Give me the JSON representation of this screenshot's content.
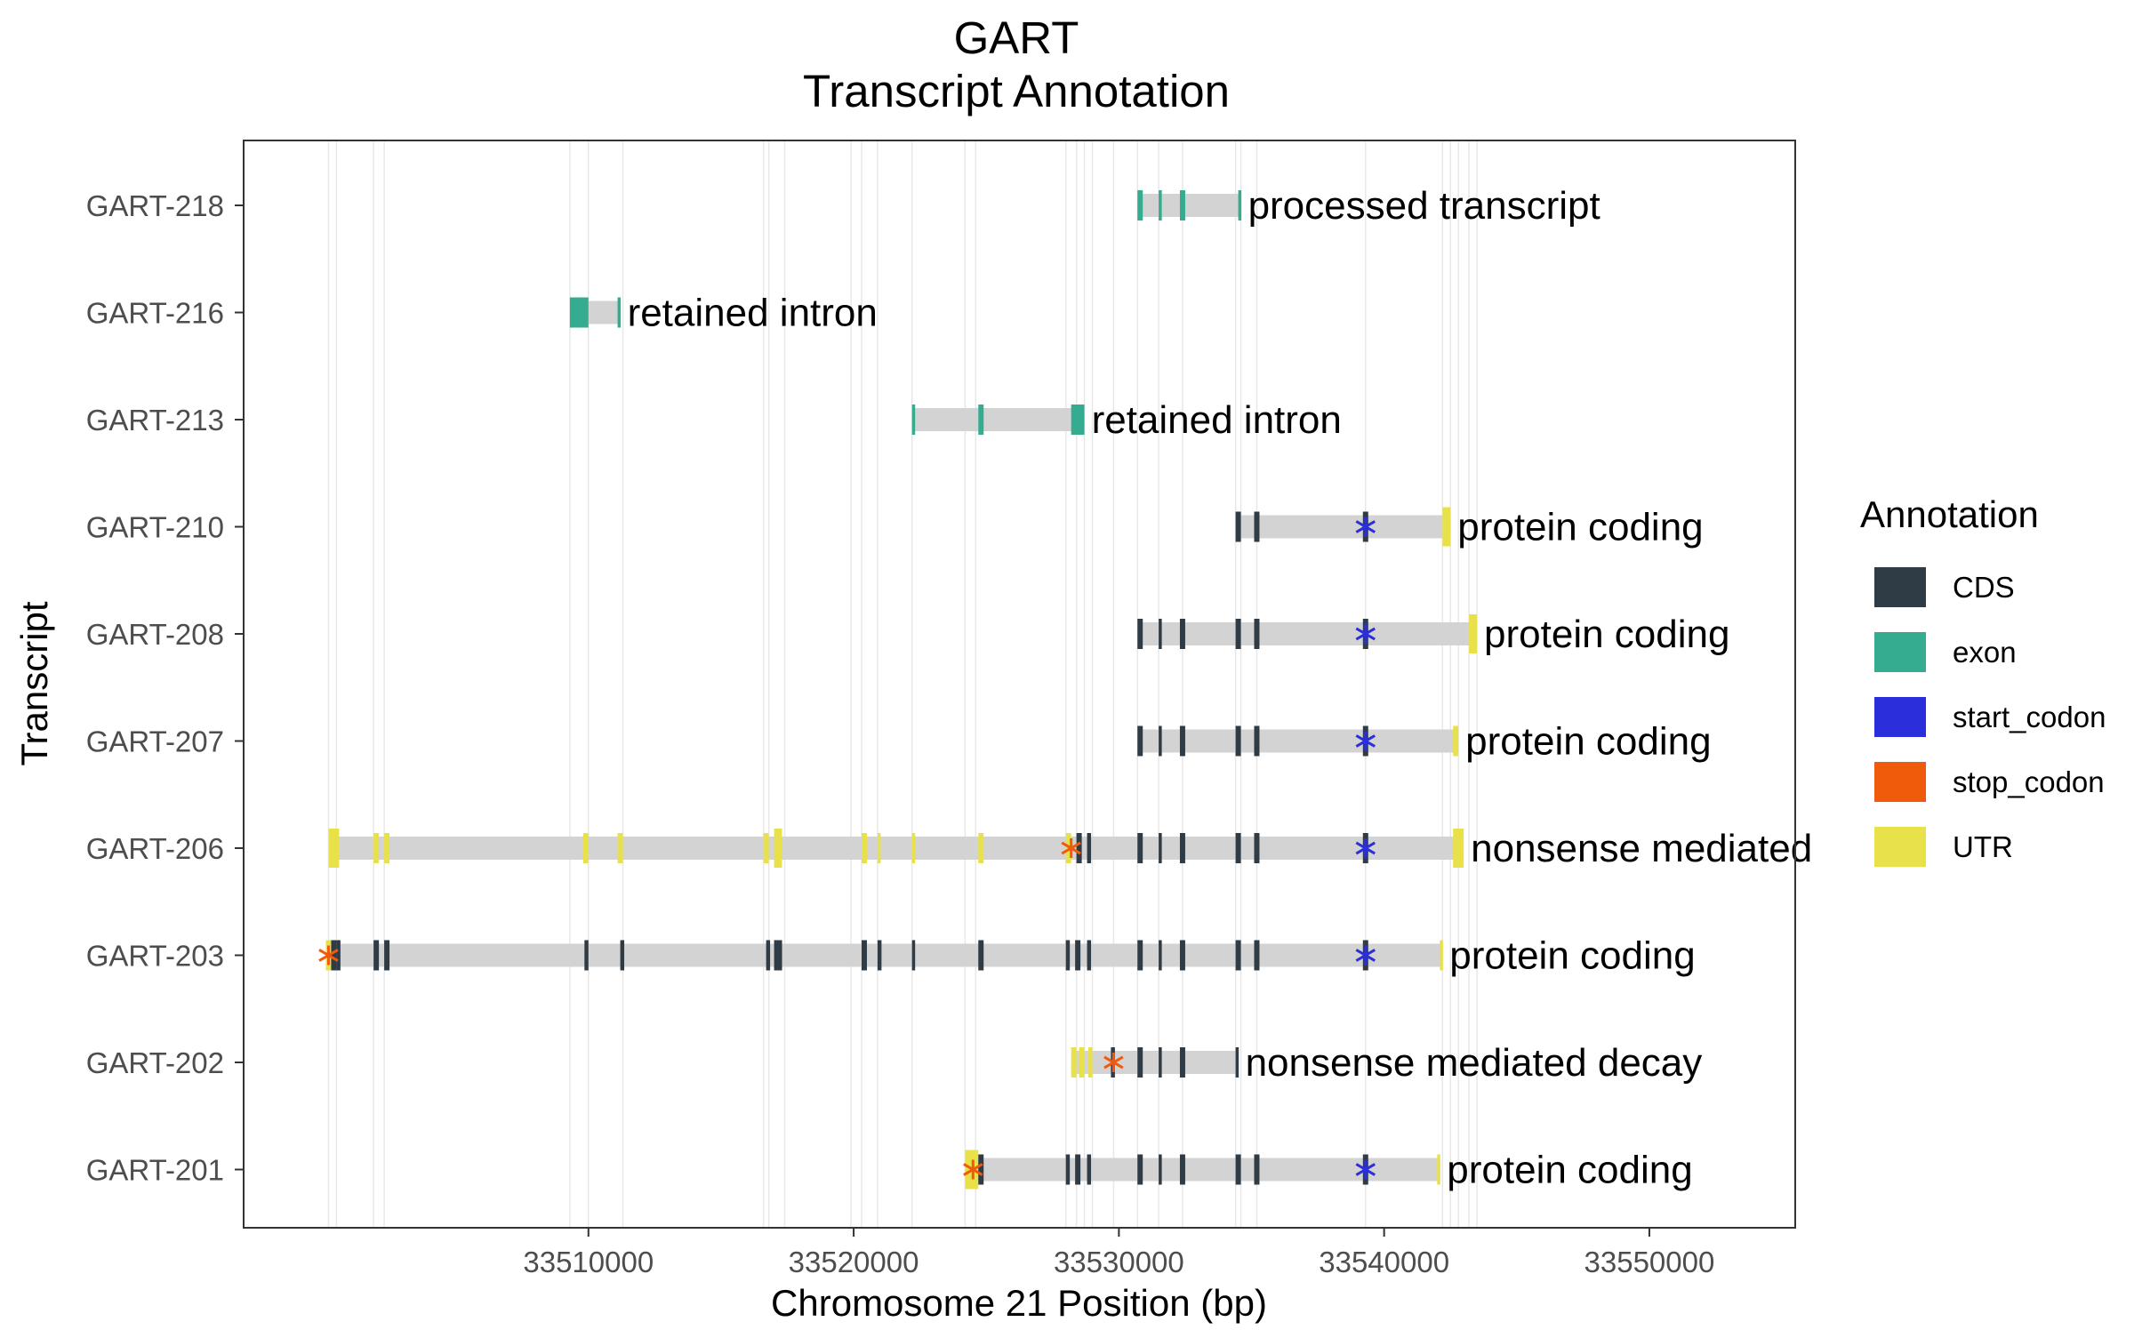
{
  "chart_data": {
    "type": "gene_model",
    "title": "GART",
    "subtitle": "Transcript Annotation",
    "xlabel": "Chromosome 21 Position (bp)",
    "ylabel": "Transcript",
    "xlim": [
      33497000,
      33555500
    ],
    "xticks": [
      33510000,
      33520000,
      33530000,
      33540000,
      33550000
    ],
    "grid": "vertical lines at feature boundaries",
    "legend": {
      "title": "Annotation",
      "position": "right",
      "items": [
        {
          "label": "CDS",
          "color": "#2f3b45"
        },
        {
          "label": "exon",
          "color": "#35ab8f"
        },
        {
          "label": "start_codon",
          "color": "#2b2fdb"
        },
        {
          "label": "stop_codon",
          "color": "#ef5a0b"
        },
        {
          "label": "UTR",
          "color": "#e9e14a"
        }
      ]
    },
    "colors": {
      "CDS": "#2f3b45",
      "exon": "#35ab8f",
      "start_codon": "#2b2fdb",
      "stop_codon": "#ef5a0b",
      "UTR": "#e9e14a",
      "intron": "#d3d3d3",
      "gridline": "#e8e8e8"
    },
    "gridlines": [
      33500200,
      33500500,
      33501900,
      33502300,
      33509300,
      33510000,
      33511300,
      33516600,
      33516800,
      33517400,
      33519900,
      33520300,
      33520900,
      33522200,
      33524200,
      33524600,
      33528000,
      33528400,
      33528700,
      33529000,
      33529800,
      33530700,
      33531500,
      33532400,
      33534400,
      33534600,
      33535200,
      33539300,
      33542200,
      33542500,
      33542800,
      33543200,
      33543500
    ],
    "transcripts": [
      {
        "name": "GART-218",
        "biotype": "processed transcript",
        "start": 33530700,
        "end": 33534600,
        "features": [
          {
            "type": "exon",
            "start": 33530700,
            "end": 33530900
          },
          {
            "type": "exon",
            "start": 33531500,
            "end": 33531600
          },
          {
            "type": "exon",
            "start": 33532300,
            "end": 33532500
          },
          {
            "type": "exon",
            "start": 33534500,
            "end": 33534600
          }
        ]
      },
      {
        "name": "GART-216",
        "biotype": "retained intron",
        "start": 33509300,
        "end": 33511200,
        "features": [
          {
            "type": "exon",
            "start": 33509300,
            "end": 33510000
          },
          {
            "type": "exon",
            "start": 33511100,
            "end": 33511200
          }
        ]
      },
      {
        "name": "GART-213",
        "biotype": "retained intron",
        "start": 33522200,
        "end": 33528700,
        "features": [
          {
            "type": "exon",
            "start": 33522200,
            "end": 33522300
          },
          {
            "type": "exon",
            "start": 33524700,
            "end": 33524900
          },
          {
            "type": "exon",
            "start": 33528200,
            "end": 33528700
          }
        ]
      },
      {
        "name": "GART-210",
        "biotype": "protein coding",
        "start": 33534400,
        "end": 33542500,
        "features": [
          {
            "type": "CDS",
            "start": 33534400,
            "end": 33534600
          },
          {
            "type": "CDS",
            "start": 33535100,
            "end": 33535300
          },
          {
            "type": "CDS",
            "start": 33539200,
            "end": 33539400
          },
          {
            "type": "UTR",
            "start": 33542200,
            "end": 33542500
          },
          {
            "type": "start_codon",
            "pos": 33539300
          }
        ]
      },
      {
        "name": "GART-208",
        "biotype": "protein coding",
        "start": 33530700,
        "end": 33543500,
        "features": [
          {
            "type": "CDS",
            "start": 33530700,
            "end": 33530900
          },
          {
            "type": "CDS",
            "start": 33531500,
            "end": 33531600
          },
          {
            "type": "CDS",
            "start": 33532300,
            "end": 33532500
          },
          {
            "type": "CDS",
            "start": 33534400,
            "end": 33534600
          },
          {
            "type": "CDS",
            "start": 33535100,
            "end": 33535300
          },
          {
            "type": "CDS",
            "start": 33539200,
            "end": 33539400
          },
          {
            "type": "UTR",
            "start": 33543200,
            "end": 33543500
          },
          {
            "type": "start_codon",
            "pos": 33539300
          }
        ]
      },
      {
        "name": "GART-207",
        "biotype": "protein coding",
        "start": 33530700,
        "end": 33542800,
        "features": [
          {
            "type": "CDS",
            "start": 33530700,
            "end": 33530900
          },
          {
            "type": "CDS",
            "start": 33531500,
            "end": 33531600
          },
          {
            "type": "CDS",
            "start": 33532300,
            "end": 33532500
          },
          {
            "type": "CDS",
            "start": 33534400,
            "end": 33534600
          },
          {
            "type": "CDS",
            "start": 33535100,
            "end": 33535300
          },
          {
            "type": "CDS",
            "start": 33539200,
            "end": 33539400
          },
          {
            "type": "UTR",
            "start": 33542600,
            "end": 33542800
          },
          {
            "type": "start_codon",
            "pos": 33539300
          }
        ]
      },
      {
        "name": "GART-206",
        "biotype": "nonsense mediated",
        "start": 33500200,
        "end": 33543000,
        "features": [
          {
            "type": "UTR",
            "start": 33500200,
            "end": 33500600
          },
          {
            "type": "UTR",
            "start": 33501900,
            "end": 33502100
          },
          {
            "type": "UTR",
            "start": 33502300,
            "end": 33502500
          },
          {
            "type": "UTR",
            "start": 33509800,
            "end": 33510000
          },
          {
            "type": "UTR",
            "start": 33511100,
            "end": 33511300
          },
          {
            "type": "UTR",
            "start": 33516600,
            "end": 33516800
          },
          {
            "type": "UTR",
            "start": 33517000,
            "end": 33517300
          },
          {
            "type": "UTR",
            "start": 33520300,
            "end": 33520500
          },
          {
            "type": "UTR",
            "start": 33520900,
            "end": 33521000
          },
          {
            "type": "UTR",
            "start": 33522200,
            "end": 33522300
          },
          {
            "type": "UTR",
            "start": 33524700,
            "end": 33524900
          },
          {
            "type": "UTR",
            "start": 33528000,
            "end": 33528200
          },
          {
            "type": "CDS",
            "start": 33528400,
            "end": 33528600
          },
          {
            "type": "CDS",
            "start": 33528800,
            "end": 33528950
          },
          {
            "type": "CDS",
            "start": 33530700,
            "end": 33530900
          },
          {
            "type": "CDS",
            "start": 33531500,
            "end": 33531600
          },
          {
            "type": "CDS",
            "start": 33532300,
            "end": 33532500
          },
          {
            "type": "CDS",
            "start": 33534400,
            "end": 33534600
          },
          {
            "type": "CDS",
            "start": 33535100,
            "end": 33535300
          },
          {
            "type": "CDS",
            "start": 33539200,
            "end": 33539400
          },
          {
            "type": "UTR",
            "start": 33542600,
            "end": 33543000
          },
          {
            "type": "stop_codon",
            "pos": 33528200
          },
          {
            "type": "start_codon",
            "pos": 33539300
          }
        ]
      },
      {
        "name": "GART-203",
        "biotype": "protein coding",
        "start": 33500100,
        "end": 33542200,
        "features": [
          {
            "type": "UTR",
            "start": 33500100,
            "end": 33500300
          },
          {
            "type": "CDS",
            "start": 33500300,
            "end": 33500500
          },
          {
            "type": "CDS",
            "start": 33500500,
            "end": 33500650
          },
          {
            "type": "CDS",
            "start": 33501900,
            "end": 33502100
          },
          {
            "type": "CDS",
            "start": 33502300,
            "end": 33502500
          },
          {
            "type": "CDS",
            "start": 33509850,
            "end": 33510000
          },
          {
            "type": "CDS",
            "start": 33511200,
            "end": 33511350
          },
          {
            "type": "CDS",
            "start": 33516700,
            "end": 33516850
          },
          {
            "type": "CDS",
            "start": 33517000,
            "end": 33517300
          },
          {
            "type": "CDS",
            "start": 33520300,
            "end": 33520500
          },
          {
            "type": "CDS",
            "start": 33520900,
            "end": 33521050
          },
          {
            "type": "CDS",
            "start": 33522200,
            "end": 33522300
          },
          {
            "type": "CDS",
            "start": 33524700,
            "end": 33524900
          },
          {
            "type": "CDS",
            "start": 33528000,
            "end": 33528150
          },
          {
            "type": "CDS",
            "start": 33528350,
            "end": 33528550
          },
          {
            "type": "CDS",
            "start": 33528800,
            "end": 33528950
          },
          {
            "type": "CDS",
            "start": 33530700,
            "end": 33530900
          },
          {
            "type": "CDS",
            "start": 33531500,
            "end": 33531600
          },
          {
            "type": "CDS",
            "start": 33532300,
            "end": 33532500
          },
          {
            "type": "CDS",
            "start": 33534400,
            "end": 33534600
          },
          {
            "type": "CDS",
            "start": 33535100,
            "end": 33535300
          },
          {
            "type": "CDS",
            "start": 33539200,
            "end": 33539400
          },
          {
            "type": "UTR",
            "start": 33542100,
            "end": 33542200
          },
          {
            "type": "stop_codon",
            "pos": 33500200
          },
          {
            "type": "start_codon",
            "pos": 33539300
          }
        ]
      },
      {
        "name": "GART-202",
        "biotype": "nonsense mediated decay",
        "start": 33528200,
        "end": 33534500,
        "features": [
          {
            "type": "UTR",
            "start": 33528200,
            "end": 33528400
          },
          {
            "type": "UTR",
            "start": 33528500,
            "end": 33528700
          },
          {
            "type": "UTR",
            "start": 33528850,
            "end": 33529000
          },
          {
            "type": "CDS",
            "start": 33529700,
            "end": 33529850
          },
          {
            "type": "CDS",
            "start": 33530700,
            "end": 33530900
          },
          {
            "type": "CDS",
            "start": 33531500,
            "end": 33531600
          },
          {
            "type": "CDS",
            "start": 33532300,
            "end": 33532500
          },
          {
            "type": "CDS",
            "start": 33534400,
            "end": 33534500
          },
          {
            "type": "stop_codon",
            "pos": 33529800
          }
        ]
      },
      {
        "name": "GART-201",
        "biotype": "protein coding",
        "start": 33524200,
        "end": 33542100,
        "features": [
          {
            "type": "UTR",
            "start": 33524200,
            "end": 33524700
          },
          {
            "type": "CDS",
            "start": 33524700,
            "end": 33524900
          },
          {
            "type": "CDS",
            "start": 33528000,
            "end": 33528150
          },
          {
            "type": "CDS",
            "start": 33528350,
            "end": 33528550
          },
          {
            "type": "CDS",
            "start": 33528800,
            "end": 33528950
          },
          {
            "type": "CDS",
            "start": 33530700,
            "end": 33530900
          },
          {
            "type": "CDS",
            "start": 33531500,
            "end": 33531600
          },
          {
            "type": "CDS",
            "start": 33532300,
            "end": 33532500
          },
          {
            "type": "CDS",
            "start": 33534400,
            "end": 33534600
          },
          {
            "type": "CDS",
            "start": 33535100,
            "end": 33535300
          },
          {
            "type": "CDS",
            "start": 33539200,
            "end": 33539400
          },
          {
            "type": "UTR",
            "start": 33542000,
            "end": 33542100
          },
          {
            "type": "stop_codon",
            "pos": 33524500
          },
          {
            "type": "start_codon",
            "pos": 33539300
          }
        ]
      }
    ]
  }
}
